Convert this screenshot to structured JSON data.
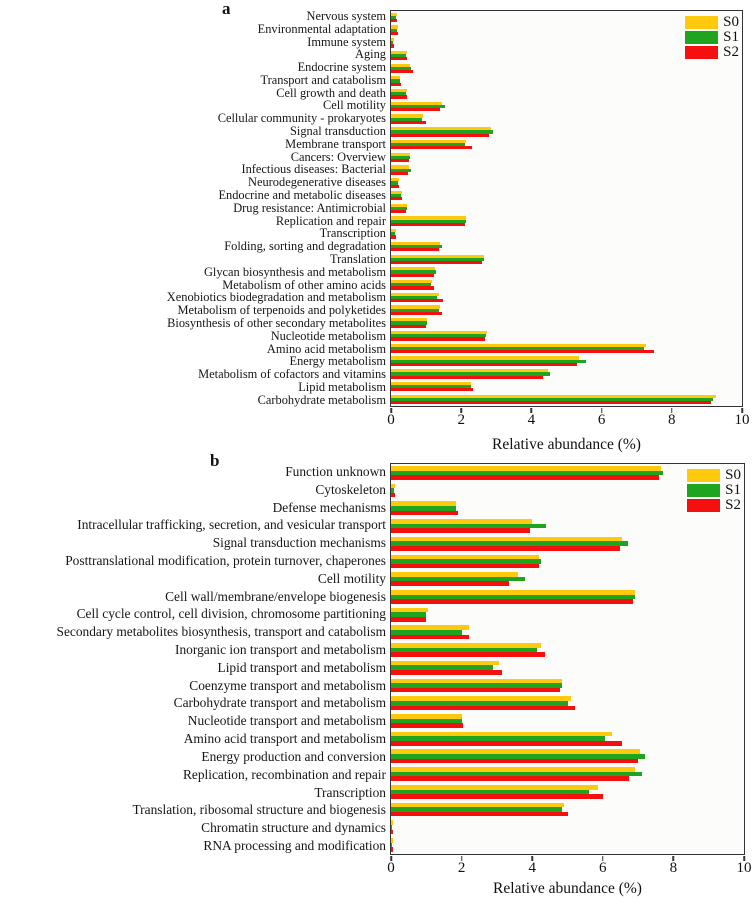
{
  "chart_data": [
    {
      "type": "bar",
      "orientation": "horizontal",
      "panel_label": "a",
      "xlabel": "Relative abundance (%)",
      "xlim": [
        0,
        10
      ],
      "xticks": [
        "0",
        "2",
        "4",
        "6",
        "8",
        "10"
      ],
      "legend_position": "top-right",
      "grid": false,
      "categories": [
        "Nervous system",
        "Environmental adaptation",
        "Immune system",
        "Aging",
        "Endocrine system",
        "Transport and catabolism",
        "Cell growth and death",
        "Cell motility",
        "Cellular community - prokaryotes",
        "Signal transduction",
        "Membrane transport",
        "Cancers: Overview",
        "Infectious diseases: Bacterial",
        "Neurodegenerative diseases",
        "Endocrine and metabolic diseases",
        "Drug resistance: Antimicrobial",
        "Replication and repair",
        "Transcription",
        "Folding, sorting and degradation",
        "Translation",
        "Glycan biosynthesis and metabolism",
        "Metabolism of other amino acids",
        "Xenobiotics biodegradation and metabolism",
        "Metabolism of terpenoids and polyketides",
        "Biosynthesis of other secondary metabolites",
        "Nucleotide metabolism",
        "Amino acid metabolism",
        "Energy metabolism",
        "Metabolism of cofactors and vitamins",
        "Lipid metabolism",
        "Carbohydrate metabolism"
      ],
      "series": [
        {
          "name": "S0",
          "color": "#FFC90E",
          "values": [
            0.18,
            0.2,
            0.08,
            0.45,
            0.55,
            0.27,
            0.45,
            1.45,
            0.9,
            2.85,
            2.15,
            0.55,
            0.52,
            0.22,
            0.3,
            0.45,
            2.15,
            0.13,
            1.4,
            2.65,
            1.25,
            1.18,
            1.36,
            1.41,
            1.02,
            2.73,
            7.26,
            5.36,
            4.48,
            2.29,
            9.26
          ]
        },
        {
          "name": "S1",
          "color": "#1FA41F",
          "values": [
            0.15,
            0.18,
            0.07,
            0.42,
            0.57,
            0.25,
            0.44,
            1.55,
            0.88,
            2.9,
            2.1,
            0.55,
            0.58,
            0.2,
            0.28,
            0.47,
            2.15,
            0.12,
            1.45,
            2.65,
            1.28,
            1.15,
            1.32,
            1.38,
            1.02,
            2.72,
            7.2,
            5.55,
            4.53,
            2.28,
            9.16
          ]
        },
        {
          "name": "S2",
          "color": "#F50F0F",
          "values": [
            0.18,
            0.2,
            0.08,
            0.45,
            0.62,
            0.28,
            0.45,
            1.4,
            1.0,
            2.8,
            2.3,
            0.5,
            0.48,
            0.22,
            0.32,
            0.44,
            2.1,
            0.14,
            1.38,
            2.6,
            1.22,
            1.22,
            1.49,
            1.46,
            1.0,
            2.68,
            7.5,
            5.31,
            4.34,
            2.34,
            9.11
          ]
        }
      ]
    },
    {
      "type": "bar",
      "orientation": "horizontal",
      "panel_label": "b",
      "xlabel": "Relative abundance (%)",
      "xlim": [
        0,
        10
      ],
      "xticks": [
        "0",
        "2",
        "4",
        "6",
        "8",
        "10"
      ],
      "legend_position": "top-right",
      "grid": false,
      "categories": [
        "Function unknown",
        "Cytoskeleton",
        "Defense mechanisms",
        "Intracellular trafficking, secretion, and vesicular transport",
        "Signal transduction mechanisms",
        "Posttranslational modification, protein turnover, chaperones",
        "Cell motility",
        "Cell wall/membrane/envelope biogenesis",
        "Cell cycle control, cell division, chromosome partitioning",
        "Secondary metabolites biosynthesis, transport and catabolism",
        "Inorganic ion transport and metabolism",
        "Lipid transport and metabolism",
        "Coenzyme transport and metabolism",
        "Carbohydrate transport and metabolism",
        "Nucleotide transport and metabolism",
        "Amino acid transport and metabolism",
        "Energy production and conversion",
        "Replication, recombination and repair",
        "Transcription",
        "Translation, ribosomal structure and biogenesis",
        "Chromatin structure and dynamics",
        "RNA processing and modification"
      ],
      "series": [
        {
          "name": "S0",
          "color": "#FFC90E",
          "values": [
            7.65,
            0.1,
            1.85,
            4.0,
            6.55,
            4.2,
            3.6,
            6.9,
            1.05,
            2.2,
            4.25,
            3.05,
            4.85,
            5.1,
            2.0,
            6.25,
            7.05,
            6.9,
            5.85,
            4.9,
            0.05,
            0.05
          ]
        },
        {
          "name": "S1",
          "color": "#1FA41F",
          "values": [
            7.7,
            0.08,
            1.85,
            4.4,
            6.7,
            4.25,
            3.8,
            6.9,
            1.0,
            2.0,
            4.15,
            2.9,
            4.85,
            5.0,
            2.0,
            6.05,
            7.2,
            7.1,
            5.6,
            4.85,
            0.04,
            0.04
          ]
        },
        {
          "name": "S2",
          "color": "#F50F0F",
          "values": [
            7.6,
            0.1,
            1.9,
            3.95,
            6.5,
            4.2,
            3.35,
            6.85,
            1.0,
            2.2,
            4.35,
            3.15,
            4.8,
            5.2,
            2.05,
            6.55,
            7.0,
            6.75,
            6.0,
            5.0,
            0.05,
            0.06
          ]
        }
      ]
    }
  ]
}
